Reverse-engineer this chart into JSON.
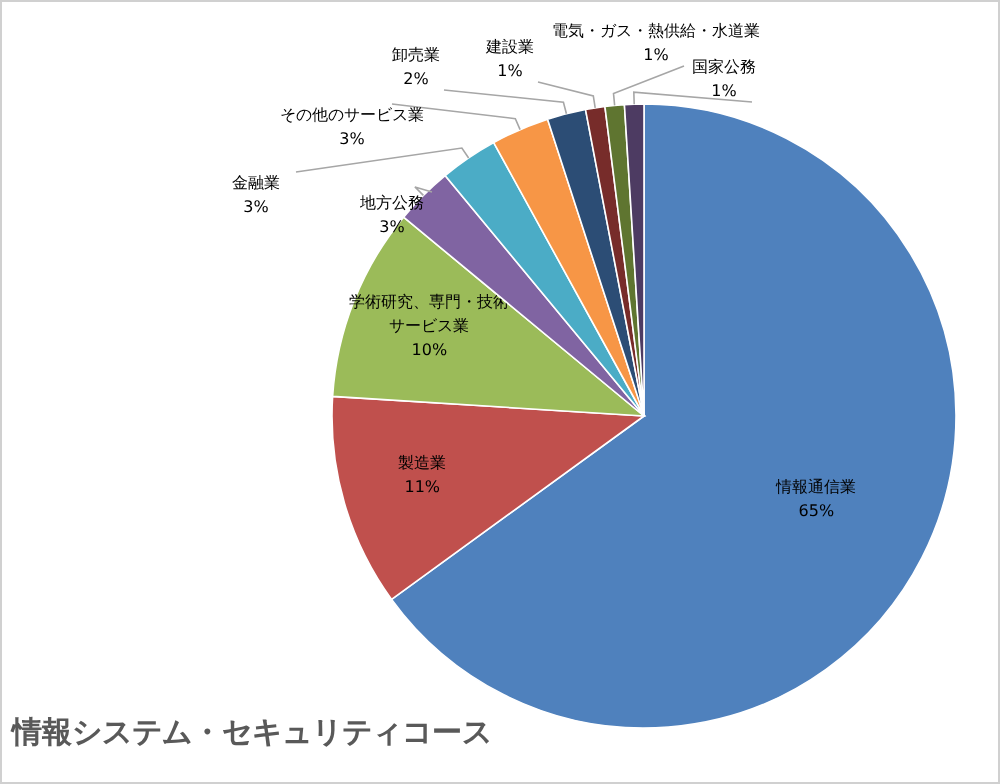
{
  "chart_data": {
    "type": "pie",
    "title": "情報システム・セキュリティコース",
    "categories": [
      "情報通信業",
      "製造業",
      "学術研究、専門・技術サービス業",
      "地方公務",
      "金融業",
      "その他のサービス業",
      "卸売業",
      "建設業",
      "電気・ガス・熱供給・水道業",
      "国家公務"
    ],
    "values": [
      65,
      11,
      10,
      3,
      3,
      3,
      2,
      1,
      1,
      1
    ],
    "colors": [
      "#4f81bd",
      "#c0504d",
      "#9bbb59",
      "#8064a2",
      "#4bacc6",
      "#f79646",
      "#2c4d75",
      "#772c2a",
      "#5f7530",
      "#4d3b62"
    ],
    "data_labels": true,
    "value_labels": [
      "65%",
      "11%",
      "10%",
      "3%",
      "3%",
      "3%",
      "2%",
      "1%",
      "1%",
      "1%"
    ],
    "legend": false
  }
}
